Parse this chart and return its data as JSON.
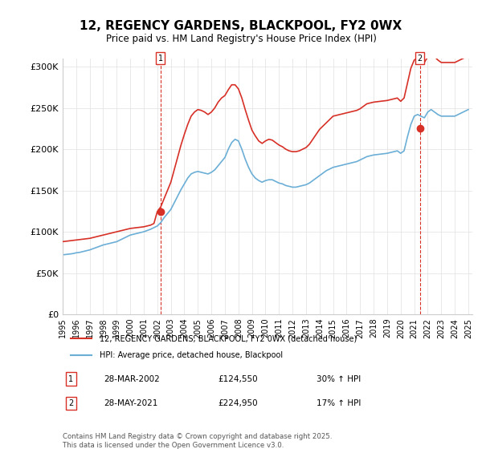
{
  "title": "12, REGENCY GARDENS, BLACKPOOL, FY2 0WX",
  "subtitle": "Price paid vs. HM Land Registry's House Price Index (HPI)",
  "ylabel": "",
  "xlabel": "",
  "background_color": "#ffffff",
  "grid_color": "#e0e0e0",
  "hpi_color": "#6baed6",
  "price_color": "#d73027",
  "dashed_color": "#d73027",
  "ylim": [
    0,
    310000
  ],
  "yticks": [
    0,
    50000,
    100000,
    150000,
    200000,
    250000,
    300000
  ],
  "ytick_labels": [
    "£0",
    "£50K",
    "£100K",
    "£150K",
    "£200K",
    "£250K",
    "£300K"
  ],
  "legend_label_price": "12, REGENCY GARDENS, BLACKPOOL, FY2 0WX (detached house)",
  "legend_label_hpi": "HPI: Average price, detached house, Blackpool",
  "sale1_date": "28-MAR-2002",
  "sale1_price": 124550,
  "sale1_hpi_pct": "30% ↑ HPI",
  "sale1_label": "1",
  "sale2_date": "28-MAY-2021",
  "sale2_price": 224950,
  "sale2_hpi_pct": "17% ↑ HPI",
  "sale2_label": "2",
  "copyright": "Contains HM Land Registry data © Crown copyright and database right 2025.\nThis data is licensed under the Open Government Licence v3.0.",
  "hpi_years": [
    1995.0,
    1995.25,
    1995.5,
    1995.75,
    1996.0,
    1996.25,
    1996.5,
    1996.75,
    1997.0,
    1997.25,
    1997.5,
    1997.75,
    1998.0,
    1998.25,
    1998.5,
    1998.75,
    1999.0,
    1999.25,
    1999.5,
    1999.75,
    2000.0,
    2000.25,
    2000.5,
    2000.75,
    2001.0,
    2001.25,
    2001.5,
    2001.75,
    2002.0,
    2002.25,
    2002.5,
    2002.75,
    2003.0,
    2003.25,
    2003.5,
    2003.75,
    2004.0,
    2004.25,
    2004.5,
    2004.75,
    2005.0,
    2005.25,
    2005.5,
    2005.75,
    2006.0,
    2006.25,
    2006.5,
    2006.75,
    2007.0,
    2007.25,
    2007.5,
    2007.75,
    2008.0,
    2008.25,
    2008.5,
    2008.75,
    2009.0,
    2009.25,
    2009.5,
    2009.75,
    2010.0,
    2010.25,
    2010.5,
    2010.75,
    2011.0,
    2011.25,
    2011.5,
    2011.75,
    2012.0,
    2012.25,
    2012.5,
    2012.75,
    2013.0,
    2013.25,
    2013.5,
    2013.75,
    2014.0,
    2014.25,
    2014.5,
    2014.75,
    2015.0,
    2015.25,
    2015.5,
    2015.75,
    2016.0,
    2016.25,
    2016.5,
    2016.75,
    2017.0,
    2017.25,
    2017.5,
    2017.75,
    2018.0,
    2018.25,
    2018.5,
    2018.75,
    2019.0,
    2019.25,
    2019.5,
    2019.75,
    2020.0,
    2020.25,
    2020.5,
    2020.75,
    2021.0,
    2021.25,
    2021.5,
    2021.75,
    2022.0,
    2022.25,
    2022.5,
    2022.75,
    2023.0,
    2023.25,
    2023.5,
    2023.75,
    2024.0,
    2024.25,
    2024.5,
    2024.75,
    2025.0
  ],
  "hpi_values": [
    72000,
    72500,
    73000,
    73500,
    74500,
    75000,
    76000,
    77000,
    78000,
    79500,
    81000,
    82500,
    84000,
    85000,
    86000,
    87000,
    88000,
    90000,
    92000,
    94000,
    96000,
    97000,
    98000,
    99000,
    100000,
    101500,
    103000,
    105000,
    107000,
    111000,
    117000,
    122000,
    127000,
    135000,
    143000,
    151000,
    158000,
    165000,
    170000,
    172000,
    173000,
    172000,
    171000,
    170000,
    172000,
    175000,
    180000,
    185000,
    190000,
    200000,
    208000,
    212000,
    210000,
    200000,
    188000,
    178000,
    170000,
    165000,
    162000,
    160000,
    162000,
    163000,
    163000,
    161000,
    159000,
    158000,
    156000,
    155000,
    154000,
    154000,
    155000,
    156000,
    157000,
    159000,
    162000,
    165000,
    168000,
    171000,
    174000,
    176000,
    178000,
    179000,
    180000,
    181000,
    182000,
    183000,
    184000,
    185000,
    187000,
    189000,
    191000,
    192000,
    193000,
    193500,
    194000,
    194500,
    195000,
    196000,
    197000,
    198000,
    195000,
    198000,
    215000,
    230000,
    240000,
    242000,
    240000,
    238000,
    245000,
    248000,
    245000,
    242000,
    240000,
    240000,
    240000,
    240000,
    240000,
    242000,
    244000,
    246000,
    248000
  ],
  "price_years": [
    1995.0,
    1995.25,
    1995.5,
    1995.75,
    1996.0,
    1996.25,
    1996.5,
    1996.75,
    1997.0,
    1997.25,
    1997.5,
    1997.75,
    1998.0,
    1998.25,
    1998.5,
    1998.75,
    1999.0,
    1999.25,
    1999.5,
    1999.75,
    2000.0,
    2000.25,
    2000.5,
    2000.75,
    2001.0,
    2001.25,
    2001.5,
    2001.75,
    2002.0,
    2002.25,
    2002.5,
    2002.75,
    2003.0,
    2003.25,
    2003.5,
    2003.75,
    2004.0,
    2004.25,
    2004.5,
    2004.75,
    2005.0,
    2005.25,
    2005.5,
    2005.75,
    2006.0,
    2006.25,
    2006.5,
    2006.75,
    2007.0,
    2007.25,
    2007.5,
    2007.75,
    2008.0,
    2008.25,
    2008.5,
    2008.75,
    2009.0,
    2009.25,
    2009.5,
    2009.75,
    2010.0,
    2010.25,
    2010.5,
    2010.75,
    2011.0,
    2011.25,
    2011.5,
    2011.75,
    2012.0,
    2012.25,
    2012.5,
    2012.75,
    2013.0,
    2013.25,
    2013.5,
    2013.75,
    2014.0,
    2014.25,
    2014.5,
    2014.75,
    2015.0,
    2015.25,
    2015.5,
    2015.75,
    2016.0,
    2016.25,
    2016.5,
    2016.75,
    2017.0,
    2017.25,
    2017.5,
    2017.75,
    2018.0,
    2018.25,
    2018.5,
    2018.75,
    2019.0,
    2019.25,
    2019.5,
    2019.75,
    2020.0,
    2020.25,
    2020.5,
    2020.75,
    2021.0,
    2021.25,
    2021.5,
    2021.75,
    2022.0,
    2022.25,
    2022.5,
    2022.75,
    2023.0,
    2023.25,
    2023.5,
    2023.75,
    2024.0,
    2024.25,
    2024.5,
    2024.75,
    2025.0
  ],
  "price_values": [
    88000,
    88500,
    89000,
    89500,
    90000,
    90500,
    91000,
    91500,
    92000,
    93000,
    94000,
    95000,
    96000,
    97000,
    98000,
    99000,
    100000,
    101000,
    102000,
    103000,
    104000,
    104500,
    105000,
    105500,
    106000,
    107000,
    108000,
    110000,
    124550,
    130000,
    140000,
    150000,
    160000,
    175000,
    190000,
    205000,
    218000,
    230000,
    240000,
    245000,
    248000,
    247000,
    245000,
    242000,
    245000,
    250000,
    257000,
    262000,
    265000,
    272000,
    278000,
    278000,
    273000,
    262000,
    248000,
    235000,
    223000,
    216000,
    210000,
    207000,
    210000,
    212000,
    211000,
    208000,
    205000,
    203000,
    200000,
    198000,
    197000,
    197000,
    198000,
    200000,
    202000,
    206000,
    212000,
    218000,
    224000,
    228000,
    232000,
    236000,
    240000,
    241000,
    242000,
    243000,
    244000,
    245000,
    246000,
    247000,
    249000,
    252000,
    255000,
    256000,
    257000,
    257500,
    258000,
    258500,
    259000,
    260000,
    261000,
    262000,
    258000,
    262000,
    280000,
    298000,
    308000,
    310000,
    308000,
    305000,
    312000,
    316000,
    312000,
    308000,
    305000,
    305000,
    305000,
    305000,
    305000,
    307000,
    309000,
    311000,
    313000
  ],
  "sale1_x": 2002.23,
  "sale1_y": 124550,
  "sale2_x": 2021.41,
  "sale2_y": 224950,
  "xlim_left": 1995.0,
  "xlim_right": 2025.3,
  "xtick_years": [
    1995,
    1996,
    1997,
    1998,
    1999,
    2000,
    2001,
    2002,
    2003,
    2004,
    2005,
    2006,
    2007,
    2008,
    2009,
    2010,
    2011,
    2012,
    2013,
    2014,
    2015,
    2016,
    2017,
    2018,
    2019,
    2020,
    2021,
    2022,
    2023,
    2024,
    2025
  ]
}
